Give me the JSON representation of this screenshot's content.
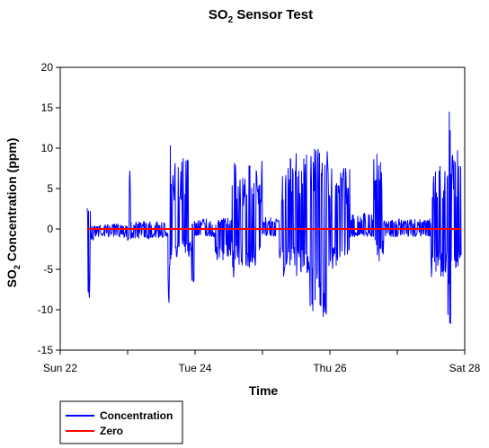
{
  "chart_data": {
    "type": "line",
    "title_main": "SO",
    "title_sub": "2",
    "title_rest": " Sensor Test",
    "xlabel": "Time",
    "ylabel_main": "SO",
    "ylabel_sub": "2",
    "ylabel_rest": " Concentration (ppm)",
    "x_ticks": [
      "Sun 22",
      "Tue 24",
      "Thu 26",
      "Sat 28"
    ],
    "xlim": [
      "Sun 22",
      "Sat 28"
    ],
    "y_ticks": [
      "20",
      "15",
      "10",
      "5",
      "0",
      "-5",
      "-10",
      "-15"
    ],
    "ylim": [
      -15,
      20
    ],
    "grid": false,
    "legend_position": "bottom-left",
    "series": [
      {
        "name": "Concentration",
        "color": "#0000ff",
        "x_days": [
          0.4,
          0.45,
          0.5,
          1.0,
          1.05,
          1.6,
          1.65,
          1.95,
          2.0,
          2.3,
          2.55,
          2.6,
          2.9,
          3.0,
          3.25,
          3.3,
          3.7,
          4.0,
          4.3,
          4.65,
          4.8,
          4.9,
          5.5,
          5.75,
          5.8,
          5.95
        ],
        "segments_ranges": [
          [
            -11.2,
            2.7
          ],
          [
            -1.5,
            0.5
          ],
          [
            -1.0,
            0.6
          ],
          [
            -2.0,
            8.8
          ],
          [
            -1.2,
            1.0
          ],
          [
            -9.7,
            10.7
          ],
          [
            -3.5,
            9.3
          ],
          [
            -7.2,
            1.3
          ],
          [
            -1.0,
            1.4
          ],
          [
            -4.0,
            1.5
          ],
          [
            -6.0,
            8.8
          ],
          [
            -5.0,
            8.0
          ],
          [
            -3.0,
            8.6
          ],
          [
            -1.0,
            1.5
          ],
          [
            -4.0,
            9.0
          ],
          [
            -6.0,
            9.6
          ],
          [
            -11.6,
            10.0
          ],
          [
            -5.0,
            8.0
          ],
          [
            -1.0,
            2.0
          ],
          [
            -4.0,
            9.5
          ],
          [
            -1.0,
            1.0
          ],
          [
            -1.0,
            1.3
          ],
          [
            -6.0,
            8.0
          ],
          [
            -12.3,
            16.1
          ],
          [
            -5.0,
            10.0
          ],
          [
            -0.5,
            0.5
          ]
        ]
      },
      {
        "name": "Zero",
        "color": "#ff0000",
        "x_days": [
          0.4,
          5.95
        ],
        "y": [
          0,
          0
        ]
      }
    ]
  }
}
